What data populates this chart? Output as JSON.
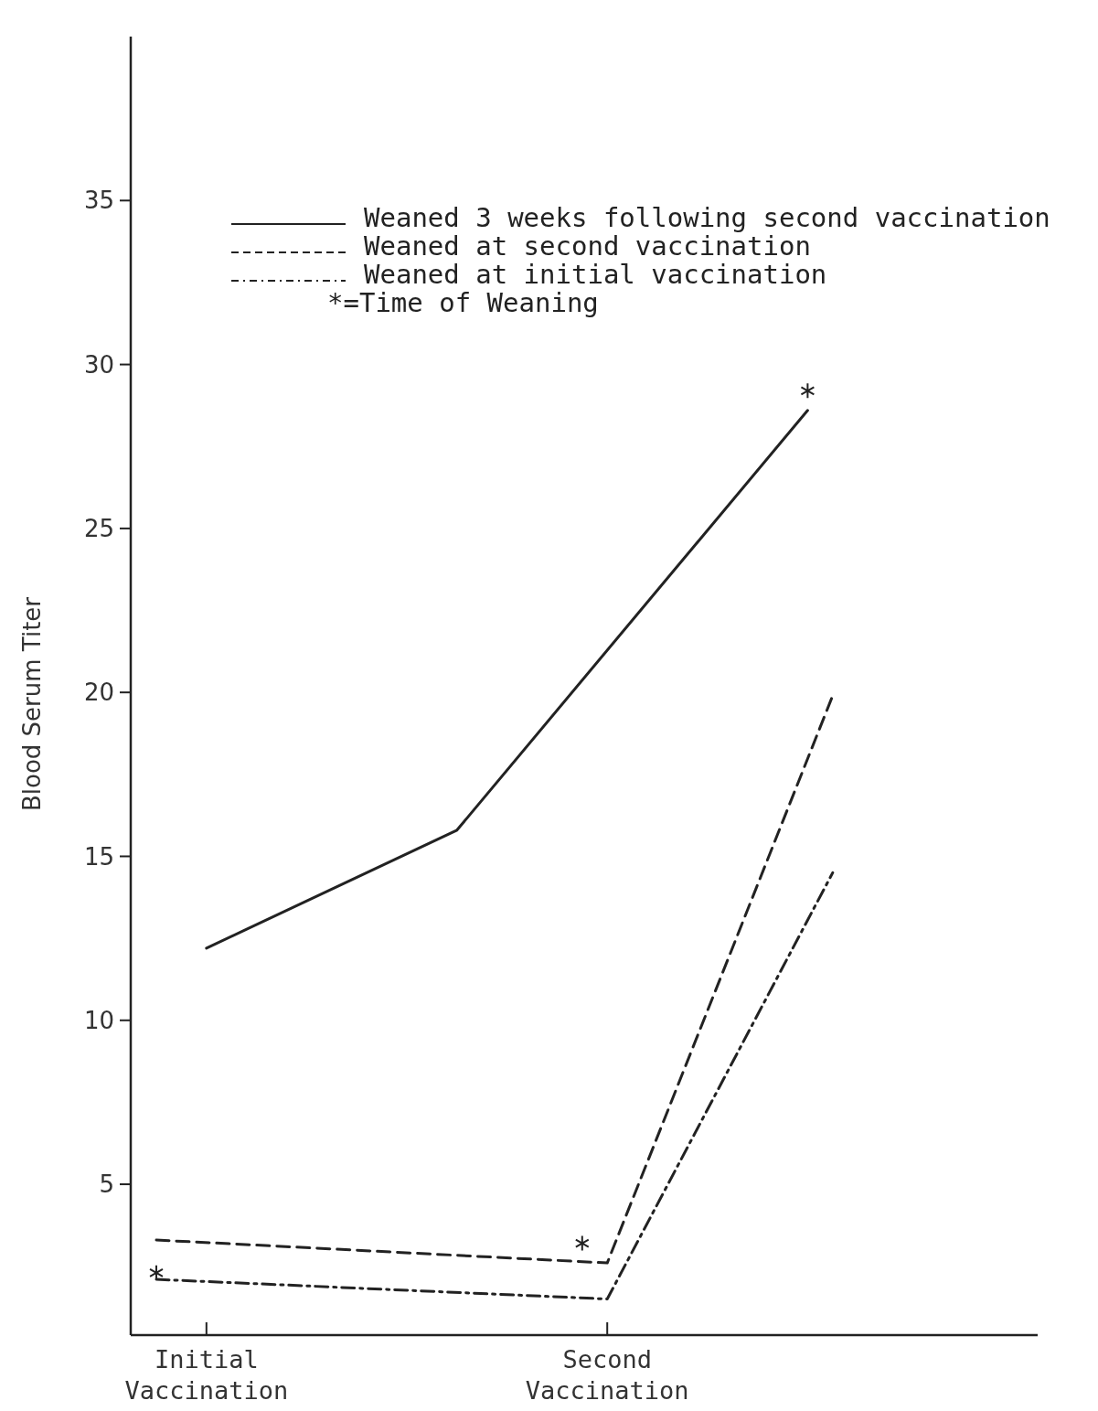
{
  "chart_data": {
    "type": "line",
    "ylabel": "Blood Serum Titer",
    "categories": [
      null,
      null,
      "Initial Vaccination",
      null,
      null,
      null,
      null,
      null,
      null,
      null,
      null,
      null,
      null,
      null,
      null,
      null,
      null,
      null,
      "Second Vaccination",
      null,
      null,
      null,
      null,
      null,
      null,
      null,
      null,
      null,
      null,
      null,
      null,
      null,
      null,
      null,
      null
    ],
    "ylim": [
      0.4,
      40
    ],
    "yticks": [
      5,
      10,
      15,
      20,
      25,
      30,
      35
    ],
    "grid": false,
    "legend": "top",
    "marker": "none",
    "series": [
      {
        "name": "Weaned 3 weeks following second vaccination",
        "color": "#222222",
        "line_style": "solid",
        "values": [
          null,
          null,
          12.2,
          null,
          null,
          null,
          null,
          null,
          null,
          null,
          null,
          null,
          15.8,
          null,
          null,
          null,
          null,
          null,
          null,
          null,
          null,
          null,
          null,
          null,
          null,
          null,
          28.6,
          null,
          null,
          null,
          null,
          null,
          null,
          null,
          null
        ]
      },
      {
        "name": "Weaned at second vaccination",
        "color": "#222222",
        "line_style": "dashed",
        "values": [
          3.3,
          null,
          null,
          null,
          null,
          null,
          null,
          null,
          null,
          null,
          null,
          null,
          null,
          null,
          null,
          null,
          null,
          null,
          2.6,
          null,
          null,
          null,
          null,
          null,
          null,
          null,
          null,
          19.9,
          null,
          null,
          null,
          null,
          null,
          null,
          null
        ]
      },
      {
        "name": "Weaned at initial vaccination",
        "color": "#222222",
        "line_style": "dashdot",
        "values": [
          2.1,
          null,
          null,
          null,
          null,
          null,
          null,
          null,
          null,
          null,
          null,
          null,
          null,
          null,
          null,
          null,
          null,
          null,
          1.5,
          null,
          null,
          null,
          null,
          null,
          null,
          null,
          null,
          14.5,
          null,
          null,
          null,
          null,
          null,
          null,
          null
        ]
      },
      {
        "type": "scatter",
        "color": "#222222",
        "marker": "cross",
        "values": [
          2.3,
          null,
          null,
          null,
          null,
          null,
          null,
          null,
          null,
          null,
          null,
          null,
          null,
          null,
          null,
          null,
          null,
          3.2,
          null,
          null,
          null,
          null,
          null,
          null,
          null,
          null,
          29.2,
          null,
          null,
          null,
          null,
          null,
          null,
          null,
          null
        ]
      }
    ],
    "annotations": [
      "*=Time of Weaning"
    ]
  }
}
